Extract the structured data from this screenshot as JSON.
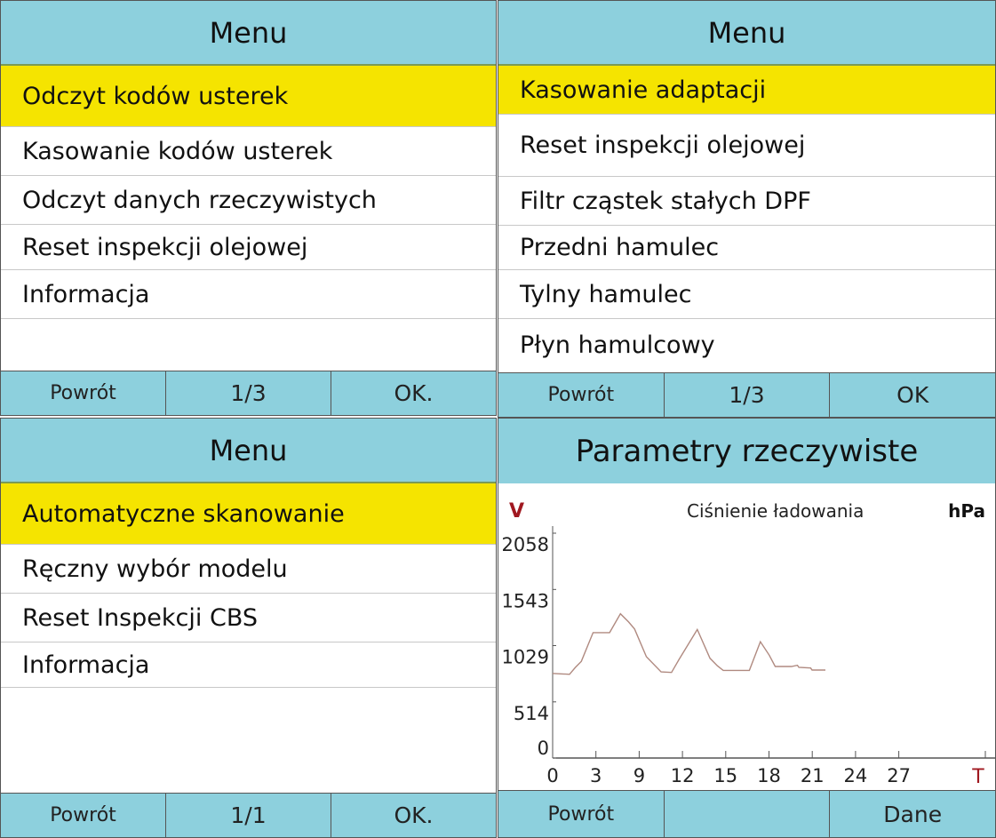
{
  "panels": [
    {
      "title": "Menu",
      "items": [
        "Odczyt kodów usterek",
        "Kasowanie kodów usterek",
        "Odczyt danych rzeczywistych",
        "Reset inspekcji olejowej",
        "Informacja"
      ],
      "footer": {
        "back": "Powrót",
        "page": "1/3",
        "ok": "OK."
      }
    },
    {
      "title": "Menu",
      "items": [
        "Kasowanie adaptacji",
        "Reset inspekcji olejowej",
        "Filtr cząstek stałych DPF",
        "Przedni hamulec",
        "Tylny hamulec",
        "Płyn hamulcowy"
      ],
      "footer": {
        "back": "Powrót",
        "page": "1/3",
        "ok": "OK"
      }
    },
    {
      "title": "Menu",
      "items": [
        "Automatyczne skanowanie",
        "Ręczny wybór modelu",
        "Reset Inspekcji CBS",
        "Informacja"
      ],
      "footer": {
        "back": "Powrót",
        "page": "1/1",
        "ok": "OK."
      }
    },
    {
      "title": "Parametry rzeczywiste",
      "footer": {
        "back": "Powrót",
        "page": "",
        "ok": "Dane"
      }
    }
  ],
  "colors": {
    "header": "#8dd0dd",
    "selected": "#f5e400",
    "line": "#b08a80",
    "axis_letter": "#a01820"
  },
  "chart_data": {
    "type": "line",
    "title": "Ciśnienie ładowania",
    "ylabel": "V",
    "xlabel": "T",
    "unit": "hPa",
    "yticks": [
      0,
      514,
      1029,
      1543,
      2058
    ],
    "ylim": [
      0,
      2058
    ],
    "xtick_labels": [
      "0",
      "3",
      "9",
      "12",
      "15",
      "18",
      "21",
      "24",
      "27"
    ],
    "xlim": [
      0,
      30
    ],
    "series": [
      {
        "name": "Ciśnienie ładowania",
        "x": [
          0,
          1.17,
          1.58,
          1.99,
          2.8,
          3.95,
          4.7,
          5.27,
          5.68,
          6.5,
          7.52,
          8.24,
          8.75,
          10.03,
          10.91,
          11.42,
          11.83,
          13.64,
          14.4,
          15.02,
          15.43,
          16.56,
          16.97,
          17.07,
          17.89,
          17.99,
          18.91
        ],
        "y": [
          774,
          766,
          830,
          885,
          1148,
          1148,
          1320,
          1245,
          1181,
          927,
          788,
          783,
          899,
          1176,
          913,
          844,
          802,
          802,
          1065,
          941,
          838,
          838,
          849,
          830,
          824,
          805,
          805
        ]
      }
    ]
  }
}
